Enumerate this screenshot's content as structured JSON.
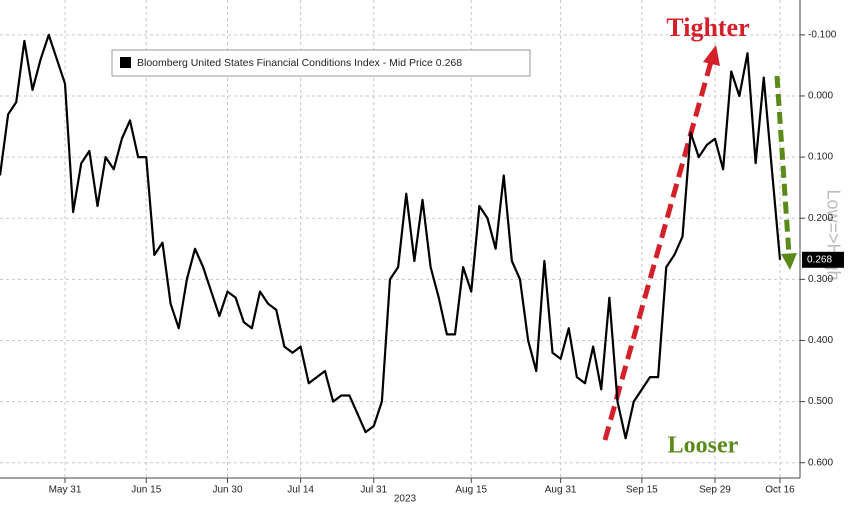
{
  "chart_data": {
    "type": "line",
    "series": [
      {
        "name": "Bloomberg United States Financial Conditions Index - Mid Price 0.268",
        "color": "#000000",
        "values": [
          0.13,
          0.03,
          0.01,
          -0.09,
          -0.01,
          -0.06,
          -0.1,
          -0.06,
          -0.02,
          0.19,
          0.11,
          0.09,
          0.18,
          0.1,
          0.12,
          0.07,
          0.04,
          0.1,
          0.1,
          0.26,
          0.24,
          0.34,
          0.38,
          0.3,
          0.25,
          0.28,
          0.32,
          0.36,
          0.32,
          0.33,
          0.37,
          0.38,
          0.32,
          0.34,
          0.35,
          0.41,
          0.42,
          0.41,
          0.47,
          0.46,
          0.45,
          0.5,
          0.49,
          0.49,
          0.52,
          0.55,
          0.54,
          0.5,
          0.3,
          0.28,
          0.16,
          0.27,
          0.17,
          0.28,
          0.33,
          0.39,
          0.39,
          0.28,
          0.32,
          0.18,
          0.2,
          0.25,
          0.13,
          0.27,
          0.3,
          0.4,
          0.45,
          0.27,
          0.42,
          0.43,
          0.38,
          0.46,
          0.47,
          0.41,
          0.48,
          0.33,
          0.5,
          0.56,
          0.5,
          0.48,
          0.46,
          0.46,
          0.28,
          0.26,
          0.23,
          0.06,
          0.1,
          0.08,
          0.07,
          0.12,
          -0.04,
          0.0,
          -0.07,
          0.11,
          -0.03,
          0.12,
          0.268
        ]
      }
    ],
    "categories": [
      null,
      null,
      null,
      null,
      null,
      null,
      null,
      null,
      "May 31",
      null,
      null,
      null,
      null,
      null,
      null,
      null,
      null,
      null,
      "Jun 15",
      null,
      null,
      null,
      null,
      null,
      null,
      null,
      null,
      null,
      "Jun 30",
      null,
      null,
      null,
      null,
      null,
      null,
      null,
      null,
      "Jul 14",
      null,
      null,
      null,
      null,
      null,
      null,
      null,
      null,
      "Jul 31",
      null,
      null,
      null,
      null,
      null,
      null,
      null,
      null,
      null,
      null,
      null,
      "Aug 15",
      null,
      null,
      null,
      null,
      null,
      null,
      null,
      null,
      null,
      null,
      "Aug 31",
      null,
      null,
      null,
      null,
      null,
      null,
      null,
      null,
      null,
      "Sep 15",
      null,
      null,
      null,
      null,
      null,
      null,
      null,
      null,
      "Sep 29",
      null,
      null,
      null,
      null,
      null,
      null,
      null,
      "Oct 16"
    ],
    "xlabel": "2023",
    "ylabel": "Low=>High",
    "ylim": [
      -0.157,
      0.625
    ],
    "y_inverted": true,
    "yticks": [
      {
        "value": -0.1,
        "label": "-0.100"
      },
      {
        "value": 0,
        "label": "0.000"
      },
      {
        "value": 0.1,
        "label": "0.100"
      },
      {
        "value": 0.2,
        "label": "0.200"
      },
      {
        "value": 0.3,
        "label": "0.300"
      },
      {
        "value": 0.4,
        "label": "0.400"
      },
      {
        "value": 0.5,
        "label": "0.500"
      },
      {
        "value": 0.6,
        "label": "0.600"
      }
    ],
    "grid": true,
    "legend": "upper left",
    "annotations": [
      {
        "text": "Tighter",
        "color": "#d4202a"
      },
      {
        "text": "Looser",
        "color": "#5a8a1a"
      }
    ]
  }
}
